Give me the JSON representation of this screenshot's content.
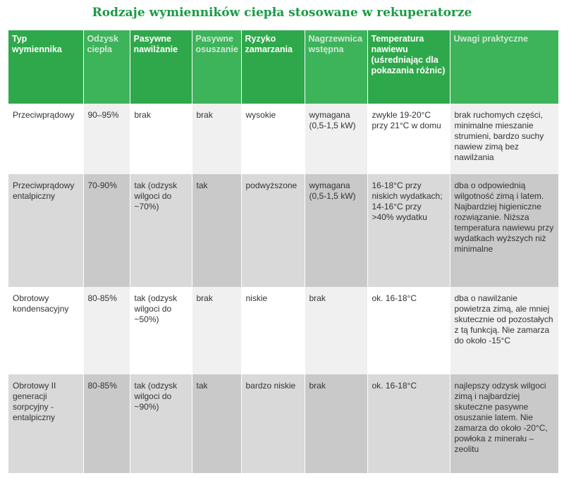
{
  "title": "Rodzaje wymienników ciepła stosowane w rekuperatorze",
  "colors": {
    "accent": "#2ea84a",
    "title": "#1c9a44"
  },
  "headers": [
    "Typ wymiennika",
    "Odzysk ciepła",
    "Pasywne nawilżanie",
    "Pasywne osuszanie",
    "Ryzyko zamarzania",
    "Nagrzewnica wstępna",
    "Temperatura nawiewu (uśredniając dla pokazania różnic)",
    "Uwagi praktyczne"
  ],
  "rows": [
    {
      "type": "Przeciwprądowy",
      "recovery": "90–95%",
      "humid": "brak",
      "dehumid": "brak",
      "freeze": "wysokie",
      "heater": "wymagana (0,5-1,5 kW)",
      "temp": "zwykle 19-20°C przy 21°C w domu",
      "notes": "brak ruchomych części, minimalne mieszanie strumieni, bardzo suchy nawiew zimą bez nawilżania"
    },
    {
      "type": "Przeciwprądowy entalpiczny",
      "recovery": "70-90%",
      "humid": "tak (odzysk wilgoci do ~70%)",
      "dehumid": "tak",
      "freeze": "podwyższone",
      "heater": "wymagana (0,5-1,5 kW)",
      "temp": "16-18°C przy niskich wydatkach; 14-16°C przy >40% wydatku",
      "notes": "dba o odpowiednią wilgotność zimą i latem. Najbardziej higieniczne rozwiązanie. Niższa temperatura nawiewu przy wydatkach wyższych niż minimalne"
    },
    {
      "type": "Obrotowy kondensacyjny",
      "recovery": "80-85%",
      "humid": "tak (odzysk wilgoci do ~50%)",
      "dehumid": "brak",
      "freeze": "niskie",
      "heater": "brak",
      "temp": "ok. 16-18°C",
      "notes": "dba o nawilżanie powietrza zimą, ale mniej skutecznie od pozostałych z tą funkcją. Nie zamarza do około -15°C"
    },
    {
      "type": "Obrotowy II generacji sorpcyjny -entalpiczny",
      "recovery": "80-85%",
      "humid": "tak (odzysk wilgoci do ~90%)",
      "dehumid": "tak",
      "freeze": "bardzo niskie",
      "heater": "brak",
      "temp": "ok. 16-18°C",
      "notes": "najlepszy odzysk wilgoci zimą i najbardziej skuteczne pasywne osuszanie latem. Nie zamarza do około -20°C, powłoka z minerału – zeolitu"
    }
  ]
}
